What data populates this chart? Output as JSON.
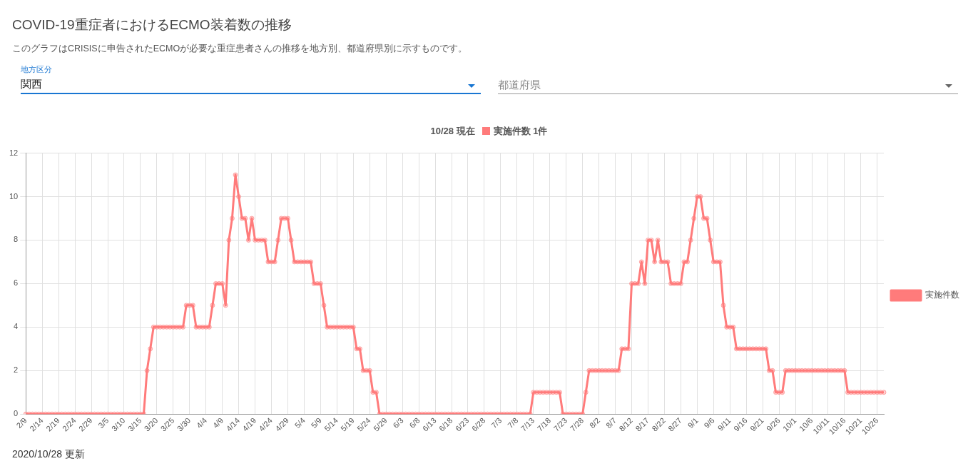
{
  "chart_data": {
    "type": "line",
    "title": "COVID-19重症者におけるECMO装着数の推移",
    "subtitle": "このグラフはCRISISに申告されたECMOが必要な重症患者さんの推移を地方別、都道府県別に示すものです。",
    "annotations": [
      "地方区分",
      "関西",
      "都道府県",
      "10/28 現在",
      "実施件数 1件",
      "2020/10/28 更新"
    ],
    "categories": [
      "2/9",
      null,
      null,
      null,
      null,
      "2/14",
      null,
      null,
      null,
      null,
      "2/19",
      null,
      null,
      null,
      null,
      "2/24",
      null,
      null,
      null,
      null,
      "2/29",
      null,
      null,
      null,
      null,
      "3/5",
      null,
      null,
      null,
      null,
      "3/10",
      null,
      null,
      null,
      null,
      "3/15",
      null,
      null,
      null,
      null,
      "3/20",
      null,
      null,
      null,
      null,
      "3/25",
      null,
      null,
      null,
      null,
      "3/30",
      null,
      null,
      null,
      null,
      "4/4",
      null,
      null,
      null,
      null,
      "4/9",
      null,
      null,
      null,
      null,
      "4/14",
      null,
      null,
      null,
      null,
      "4/19",
      null,
      null,
      null,
      null,
      "4/24",
      null,
      null,
      null,
      null,
      "4/29",
      null,
      null,
      null,
      null,
      "5/4",
      null,
      null,
      null,
      null,
      "5/9",
      null,
      null,
      null,
      null,
      "5/14",
      null,
      null,
      null,
      null,
      "5/19",
      null,
      null,
      null,
      null,
      "5/24",
      null,
      null,
      null,
      null,
      "5/29",
      null,
      null,
      null,
      null,
      "6/3",
      null,
      null,
      null,
      null,
      "6/8",
      null,
      null,
      null,
      null,
      "6/13",
      null,
      null,
      null,
      null,
      "6/18",
      null,
      null,
      null,
      null,
      "6/23",
      null,
      null,
      null,
      null,
      "6/28",
      null,
      null,
      null,
      null,
      "7/3",
      null,
      null,
      null,
      null,
      "7/8",
      null,
      null,
      null,
      null,
      "7/13",
      null,
      null,
      null,
      null,
      "7/18",
      null,
      null,
      null,
      null,
      "7/23",
      null,
      null,
      null,
      null,
      "7/28",
      null,
      null,
      null,
      null,
      "8/2",
      null,
      null,
      null,
      null,
      "8/7",
      null,
      null,
      null,
      null,
      "8/12",
      null,
      null,
      null,
      null,
      "8/17",
      null,
      null,
      null,
      null,
      "8/22",
      null,
      null,
      null,
      null,
      "8/27",
      null,
      null,
      null,
      null,
      "9/1",
      null,
      null,
      null,
      null,
      "9/6",
      null,
      null,
      null,
      null,
      "9/11",
      null,
      null,
      null,
      null,
      "9/16",
      null,
      null,
      null,
      null,
      "9/21",
      null,
      null,
      null,
      null,
      "9/26",
      null,
      null,
      null,
      null,
      "10/1",
      null,
      null,
      null,
      null,
      "10/6",
      null,
      null,
      null,
      null,
      "10/11",
      null,
      null,
      null,
      null,
      "10/16",
      null,
      null,
      null,
      null,
      "10/21",
      null,
      null,
      null,
      null,
      "10/26",
      null,
      null
    ],
    "series": [
      {
        "name": "実施件数",
        "color": "#ff7b7b",
        "values": [
          0,
          0,
          0,
          0,
          0,
          0,
          0,
          0,
          0,
          0,
          0,
          0,
          0,
          0,
          0,
          0,
          0,
          0,
          0,
          0,
          0,
          0,
          0,
          0,
          0,
          0,
          0,
          0,
          0,
          0,
          0,
          0,
          0,
          0,
          0,
          0,
          0,
          2,
          3,
          4,
          4,
          4,
          4,
          4,
          4,
          4,
          4,
          4,
          4,
          5,
          5,
          5,
          4,
          4,
          4,
          4,
          4,
          5,
          6,
          6,
          6,
          5,
          8,
          9,
          11,
          10,
          9,
          9,
          8,
          9,
          8,
          8,
          8,
          8,
          7,
          7,
          7,
          8,
          9,
          9,
          9,
          8,
          7,
          7,
          7,
          7,
          7,
          7,
          6,
          6,
          6,
          5,
          4,
          4,
          4,
          4,
          4,
          4,
          4,
          4,
          4,
          3,
          3,
          2,
          2,
          2,
          1,
          1,
          0,
          0,
          0,
          0,
          0,
          0,
          0,
          0,
          0,
          0,
          0,
          0,
          0,
          0,
          0,
          0,
          0,
          0,
          0,
          0,
          0,
          0,
          0,
          0,
          0,
          0,
          0,
          0,
          0,
          0,
          0,
          0,
          0,
          0,
          0,
          0,
          0,
          0,
          0,
          0,
          0,
          0,
          0,
          0,
          0,
          0,
          0,
          1,
          1,
          1,
          1,
          1,
          1,
          1,
          1,
          1,
          0,
          0,
          0,
          0,
          0,
          0,
          0,
          1,
          2,
          2,
          2,
          2,
          2,
          2,
          2,
          2,
          2,
          2,
          3,
          3,
          3,
          6,
          6,
          6,
          7,
          6,
          8,
          8,
          7,
          8,
          7,
          7,
          7,
          6,
          6,
          6,
          6,
          7,
          7,
          8,
          9,
          10,
          10,
          9,
          9,
          8,
          7,
          7,
          7,
          5,
          4,
          4,
          4,
          3,
          3,
          3,
          3,
          3,
          3,
          3,
          3,
          3,
          3,
          2,
          2,
          1,
          1,
          1,
          2,
          2,
          2,
          2,
          2,
          2,
          2,
          2,
          2,
          2,
          2,
          2,
          2,
          2,
          2,
          2,
          2,
          2,
          2,
          1,
          1,
          1,
          1,
          1,
          1,
          1,
          1,
          1,
          1,
          1,
          1
        ]
      }
    ],
    "ylim": [
      0,
      12
    ],
    "yticks": [
      0,
      2,
      4,
      6,
      8,
      10,
      12
    ],
    "grid": true,
    "legend": "right",
    "marker": "circle",
    "line_style": "solid"
  }
}
